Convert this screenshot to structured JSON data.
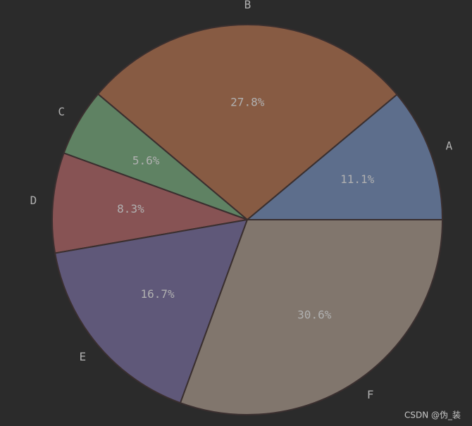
{
  "chart_data": {
    "type": "pie",
    "categories": [
      "A",
      "B",
      "C",
      "D",
      "E",
      "F"
    ],
    "values": [
      11.1,
      27.8,
      5.6,
      8.3,
      16.7,
      30.6
    ],
    "value_labels": [
      "11.1%",
      "27.8%",
      "5.6%",
      "8.3%",
      "16.7%",
      "30.6%"
    ],
    "colors": [
      "#5d6e8c",
      "#875b43",
      "#5f8263",
      "#875354",
      "#5f5879",
      "#81766d"
    ],
    "start_angle": 0,
    "counterclockwise": true
  },
  "watermark": "CSDN @伪_装"
}
